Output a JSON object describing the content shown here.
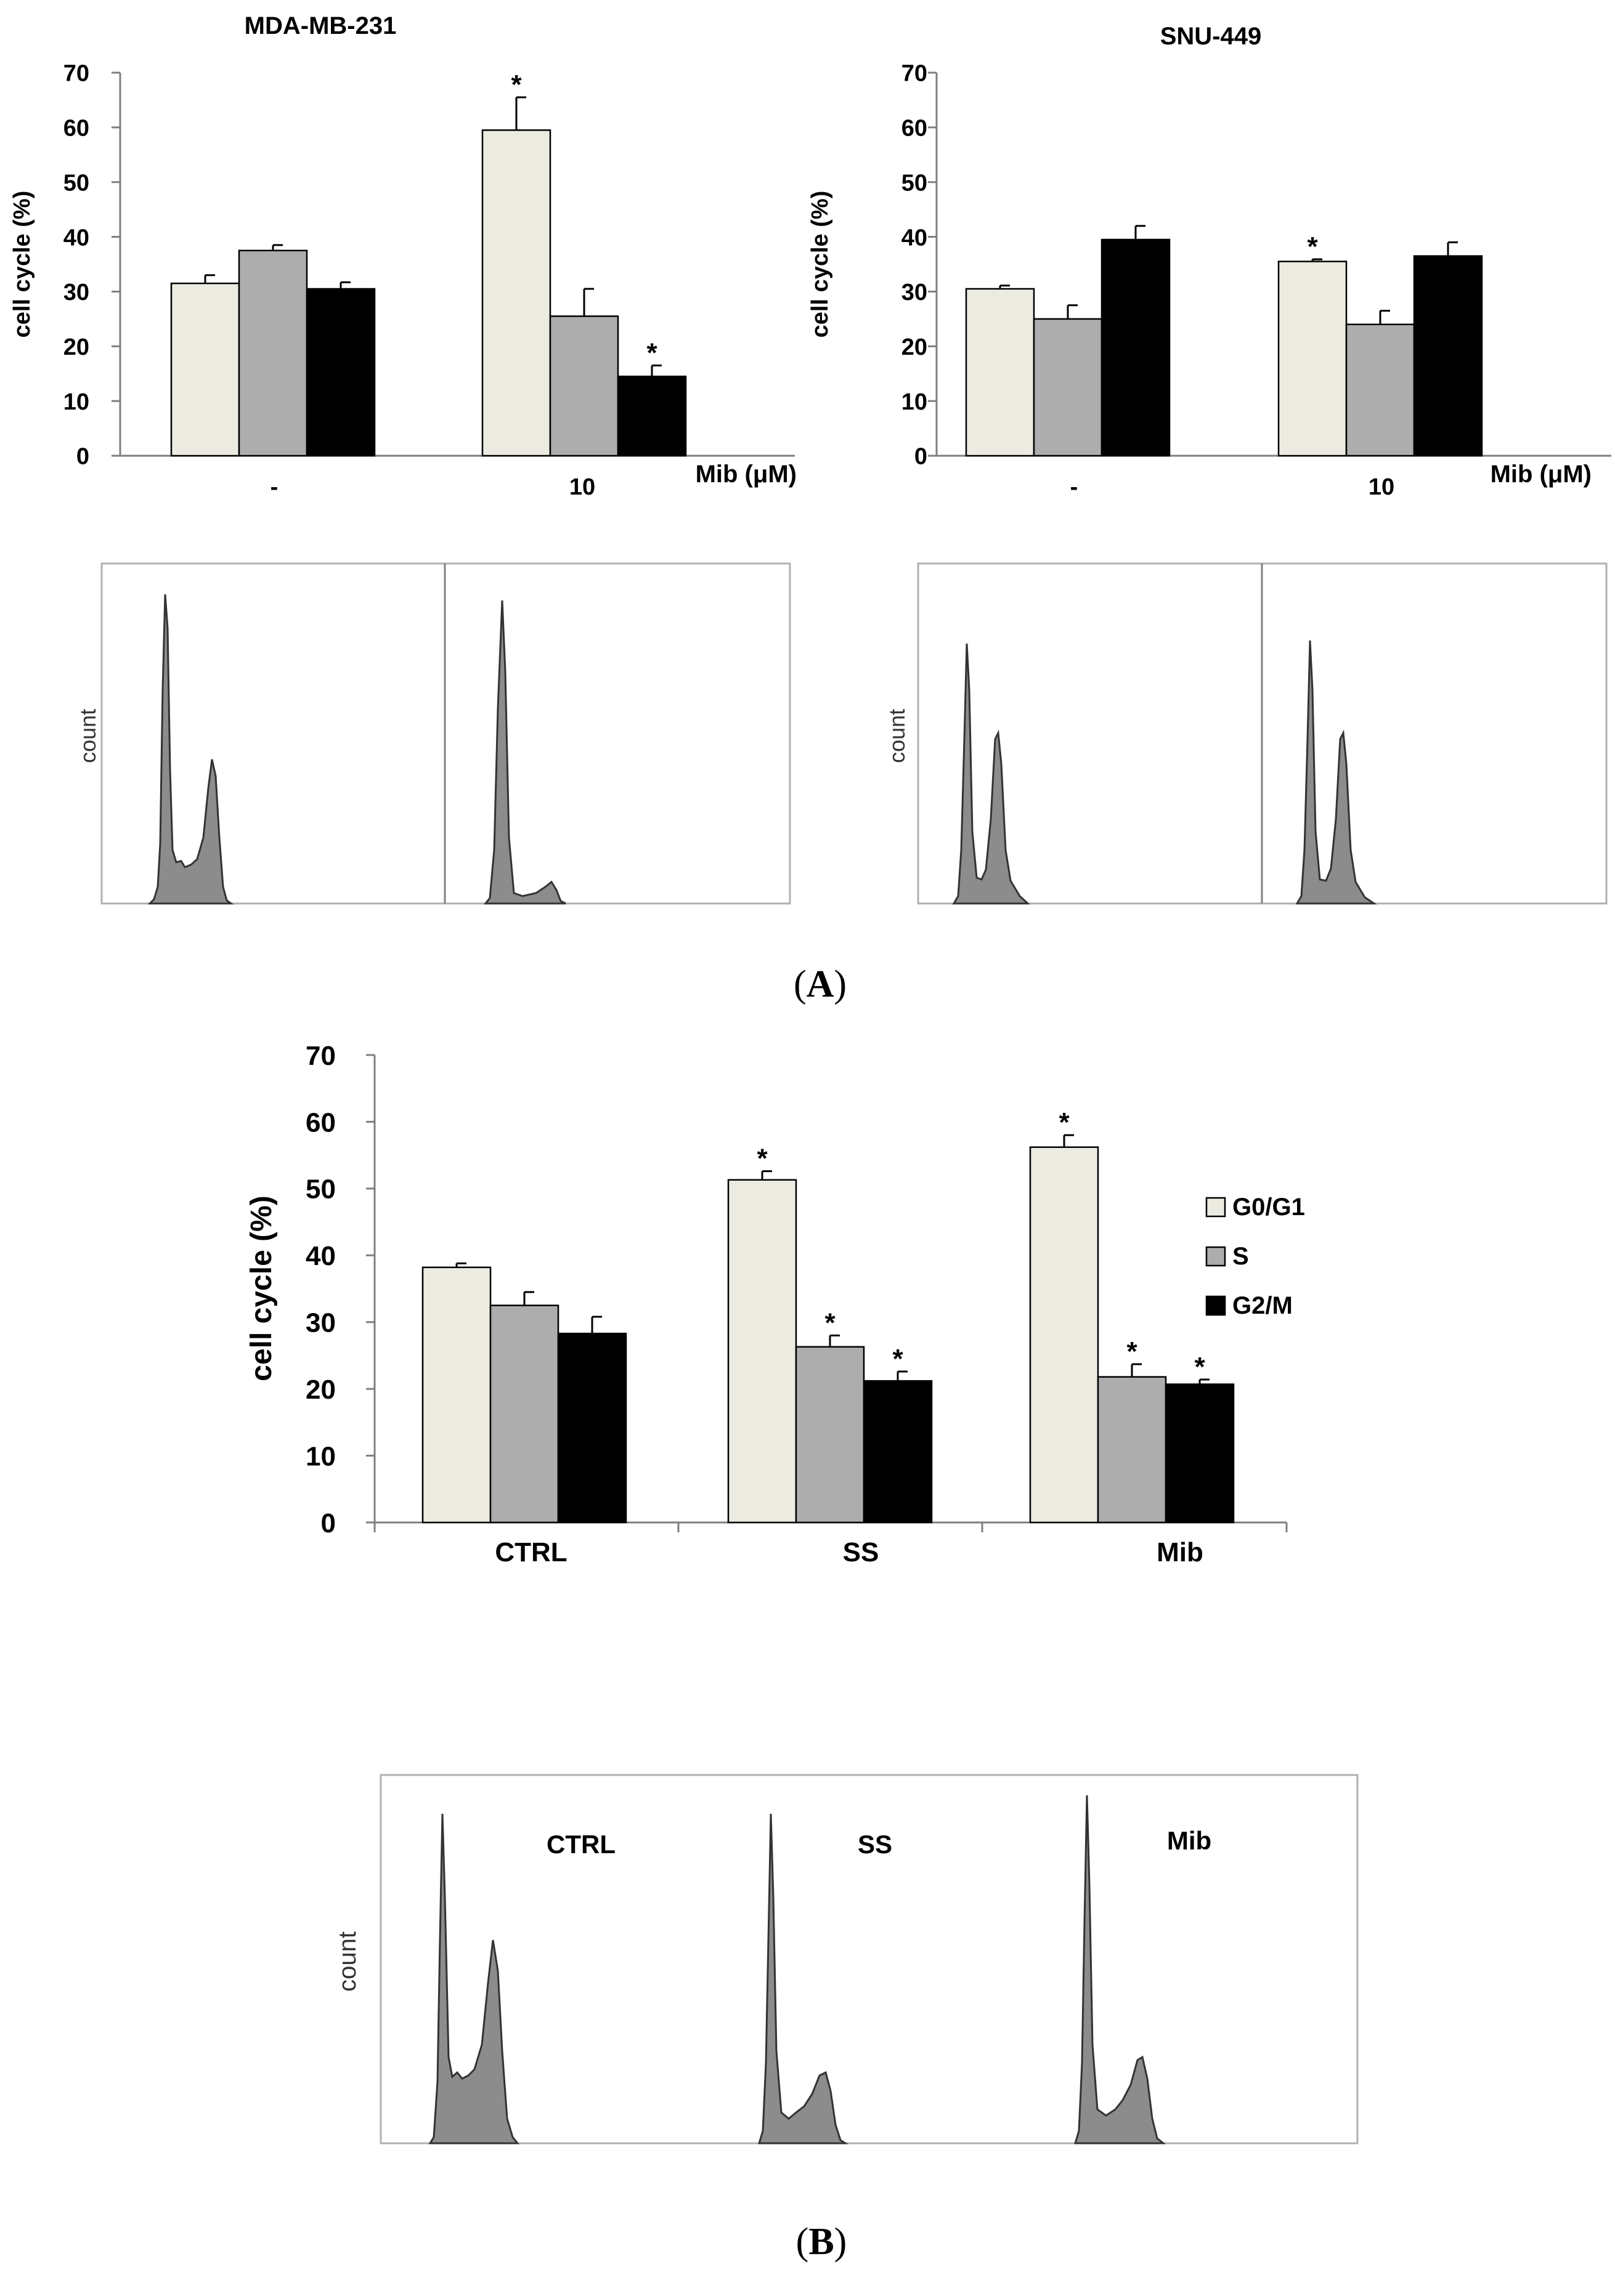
{
  "panel_a_label": "A",
  "panel_b_label": "B",
  "colors": {
    "g0g1": "#ECEBE1",
    "s": "#ADADAD",
    "g2m": "#000000",
    "hist_fill": "#8C8C8C",
    "hist_line": "#333333"
  },
  "chart_data": [
    {
      "id": "a-mda",
      "type": "bar",
      "title": "MDA-MB-231",
      "ylabel": "cell cycle (%)",
      "xlabel": "Mib (μM)",
      "categories": [
        "-",
        "10"
      ],
      "ylim": [
        0,
        70
      ],
      "yticks": [
        0,
        10,
        20,
        30,
        40,
        50,
        60,
        70
      ],
      "series": [
        {
          "name": "G0/G1",
          "values": [
            31.5,
            59.5
          ],
          "errors": [
            1.5,
            6.0
          ],
          "sig": [
            false,
            true
          ]
        },
        {
          "name": "S",
          "values": [
            37.5,
            25.5
          ],
          "errors": [
            1.0,
            5.0
          ],
          "sig": [
            false,
            false
          ]
        },
        {
          "name": "G2/M",
          "values": [
            30.5,
            14.5
          ],
          "errors": [
            1.2,
            2.0
          ],
          "sig": [
            false,
            true
          ]
        }
      ]
    },
    {
      "id": "a-snu",
      "type": "bar",
      "title": "SNU-449",
      "ylabel": "cell cycle (%)",
      "xlabel": "Mib (μM)",
      "categories": [
        "-",
        "10"
      ],
      "ylim": [
        0,
        70
      ],
      "yticks": [
        0,
        10,
        20,
        30,
        40,
        50,
        60,
        70
      ],
      "series": [
        {
          "name": "G0/G1",
          "values": [
            30.5,
            35.5
          ],
          "errors": [
            0.6,
            0.4
          ],
          "sig": [
            false,
            true
          ]
        },
        {
          "name": "S",
          "values": [
            25.0,
            24.0
          ],
          "errors": [
            2.5,
            2.5
          ],
          "sig": [
            false,
            false
          ]
        },
        {
          "name": "G2/M",
          "values": [
            39.5,
            36.5
          ],
          "errors": [
            2.5,
            2.5
          ],
          "sig": [
            false,
            false
          ]
        }
      ]
    },
    {
      "id": "b",
      "type": "bar",
      "title": "",
      "ylabel": "cell cycle (%)",
      "xlabel": "",
      "categories": [
        "CTRL",
        "SS",
        "Mib"
      ],
      "ylim": [
        0,
        70
      ],
      "yticks": [
        0,
        10,
        20,
        30,
        40,
        50,
        60,
        70
      ],
      "series": [
        {
          "name": "G0/G1",
          "values": [
            38.2,
            51.3,
            56.2
          ],
          "errors": [
            0.6,
            1.3,
            1.8
          ],
          "sig": [
            false,
            true,
            true
          ]
        },
        {
          "name": "S",
          "values": [
            32.5,
            26.3,
            21.8
          ],
          "errors": [
            2.0,
            1.7,
            1.9
          ],
          "sig": [
            false,
            true,
            true
          ]
        },
        {
          "name": "G2/M",
          "values": [
            28.3,
            21.2,
            20.7
          ],
          "errors": [
            2.5,
            1.4,
            0.7
          ],
          "sig": [
            false,
            true,
            true
          ]
        }
      ],
      "legend": [
        "G0/G1",
        "S",
        "G2/M"
      ]
    }
  ],
  "histograms": {
    "a_ylabel": "count",
    "b_ylabel": "count",
    "b_labels": [
      "CTRL",
      "SS",
      "Mib"
    ]
  }
}
